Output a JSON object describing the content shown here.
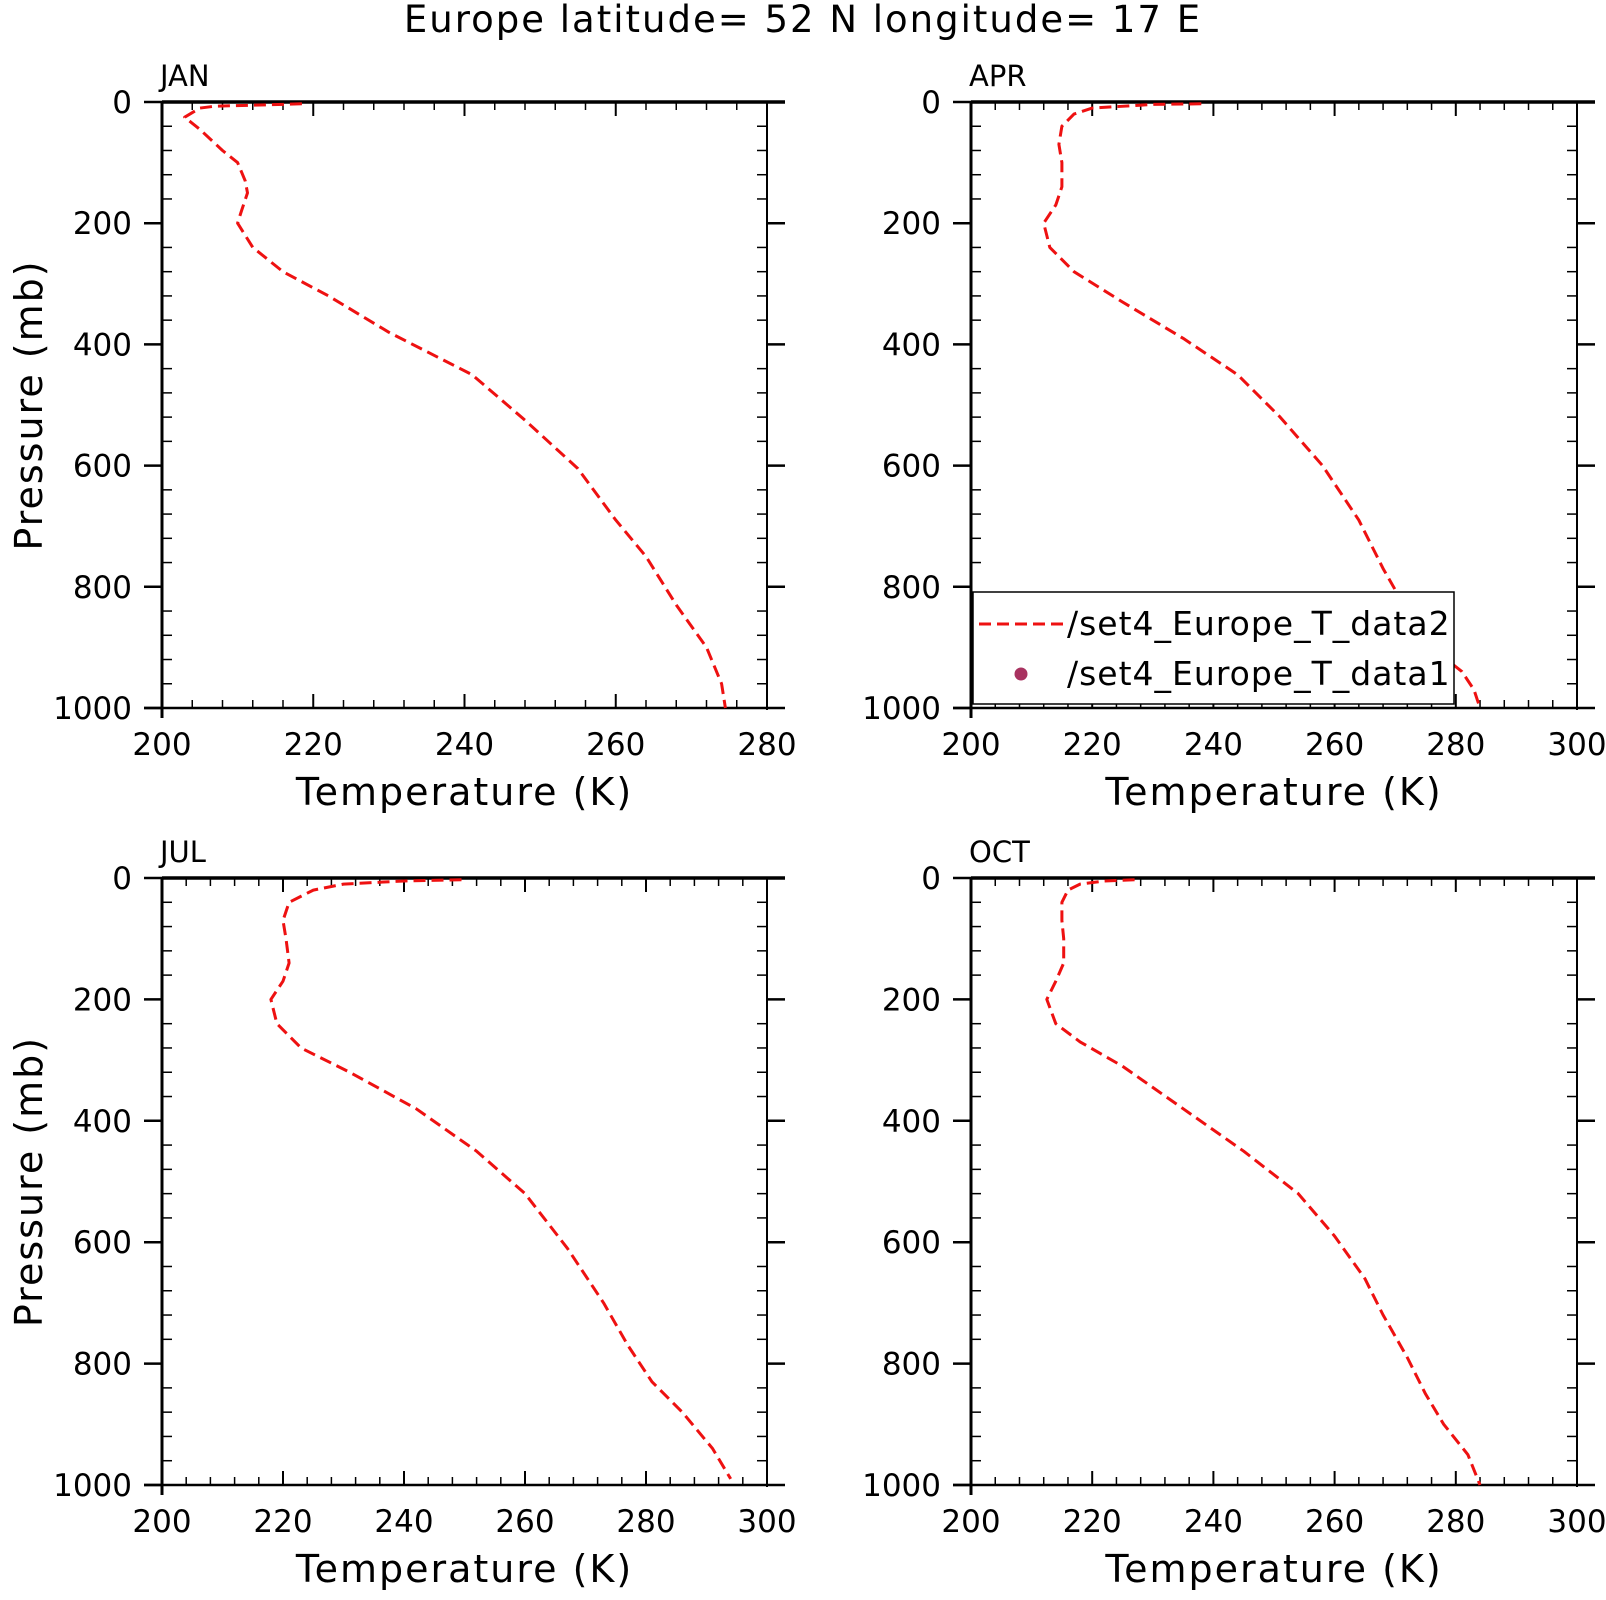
{
  "title": "Europe  latitude= 52 N longitude= 17 E",
  "colors": {
    "series": "#ee1111",
    "marker": "#a83260",
    "axis": "#000000"
  },
  "legend": {
    "panel": "APR",
    "placement": "bottom-right",
    "entries": [
      {
        "label": "/set4_Europe_T_data2",
        "style": "dashed-line",
        "color": "#ee1111"
      },
      {
        "label": "/set4_Europe_T_data1",
        "style": "dot",
        "color": "#a83260"
      }
    ]
  },
  "chart_data": [
    {
      "type": "line",
      "panel_label": "JAN",
      "xlabel": "Temperature (K)",
      "ylabel": "Pressure (mb)",
      "xlim": [
        200,
        280
      ],
      "ylim": [
        1000,
        0
      ],
      "y_inverted": true,
      "xticks": [
        "200",
        "220",
        "240",
        "260",
        "280"
      ],
      "yticks": [
        "0",
        "200",
        "400",
        "600",
        "800",
        "1000"
      ],
      "series": [
        {
          "name": "/set4_Europe_T_data2",
          "style": "dashed",
          "points": [
            [
              218.5,
              3
            ],
            [
              213,
              5
            ],
            [
              207,
              7
            ],
            [
              205,
              10
            ],
            [
              203,
              25
            ],
            [
              205,
              45
            ],
            [
              208,
              80
            ],
            [
              210,
              100
            ],
            [
              211,
              130
            ],
            [
              211.3,
              150
            ],
            [
              210.5,
              180
            ],
            [
              210,
              200
            ],
            [
              212,
              240
            ],
            [
              216,
              280
            ],
            [
              222,
              320
            ],
            [
              230,
              380
            ],
            [
              241,
              450
            ],
            [
              248,
              525
            ],
            [
              255,
              605
            ],
            [
              260,
              690
            ],
            [
              264,
              750
            ],
            [
              268,
              830
            ],
            [
              272,
              900
            ],
            [
              274,
              960
            ],
            [
              274.5,
              1000
            ]
          ]
        }
      ]
    },
    {
      "type": "line",
      "panel_label": "APR",
      "xlabel": "Temperature (K)",
      "ylabel": "",
      "xlim": [
        200,
        300
      ],
      "ylim": [
        1000,
        0
      ],
      "y_inverted": true,
      "xticks": [
        "200",
        "220",
        "240",
        "260",
        "280",
        "300"
      ],
      "yticks": [
        "0",
        "200",
        "400",
        "600",
        "800",
        "1000"
      ],
      "series": [
        {
          "name": "/set4_Europe_T_data2",
          "style": "dashed",
          "points": [
            [
              238,
              3
            ],
            [
              230,
              4
            ],
            [
              220,
              10
            ],
            [
              217,
              20
            ],
            [
              215,
              40
            ],
            [
              214.5,
              70
            ],
            [
              215,
              100
            ],
            [
              215,
              140
            ],
            [
              214,
              170
            ],
            [
              212,
              200
            ],
            [
              213,
              240
            ],
            [
              217,
              280
            ],
            [
              225,
              330
            ],
            [
              235,
              390
            ],
            [
              244,
              450
            ],
            [
              251,
              520
            ],
            [
              258,
              600
            ],
            [
              264,
              690
            ],
            [
              268,
              770
            ],
            [
              272,
              840
            ],
            [
              276,
              900
            ],
            [
              281,
              940
            ],
            [
              283,
              970
            ],
            [
              284,
              1000
            ]
          ]
        }
      ]
    },
    {
      "type": "line",
      "panel_label": "JUL",
      "xlabel": "Temperature (K)",
      "ylabel": "Pressure (mb)",
      "xlim": [
        200,
        300
      ],
      "ylim": [
        1000,
        0
      ],
      "y_inverted": true,
      "xticks": [
        "200",
        "220",
        "240",
        "260",
        "280",
        "300"
      ],
      "yticks": [
        "0",
        "200",
        "400",
        "600",
        "800",
        "1000"
      ],
      "series": [
        {
          "name": "/set4_Europe_T_data2",
          "style": "dashed",
          "points": [
            [
              249.5,
              3
            ],
            [
              240,
              5
            ],
            [
              230,
              10
            ],
            [
              225,
              20
            ],
            [
              221,
              40
            ],
            [
              220,
              70
            ],
            [
              220.5,
              100
            ],
            [
              221,
              140
            ],
            [
              220,
              170
            ],
            [
              218,
              200
            ],
            [
              219,
              240
            ],
            [
              223,
              280
            ],
            [
              231,
              320
            ],
            [
              242,
              380
            ],
            [
              252,
              450
            ],
            [
              260,
              520
            ],
            [
              267,
              610
            ],
            [
              273,
              700
            ],
            [
              277,
              770
            ],
            [
              281,
              830
            ],
            [
              286,
              880
            ],
            [
              291,
              940
            ],
            [
              294,
              990
            ]
          ]
        }
      ]
    },
    {
      "type": "line",
      "panel_label": "OCT",
      "xlabel": "Temperature (K)",
      "ylabel": "",
      "xlim": [
        200,
        300
      ],
      "ylim": [
        1000,
        0
      ],
      "y_inverted": true,
      "xticks": [
        "200",
        "220",
        "240",
        "260",
        "280",
        "300"
      ],
      "yticks": [
        "0",
        "200",
        "400",
        "600",
        "800",
        "1000"
      ],
      "series": [
        {
          "name": "/set4_Europe_T_data2",
          "style": "dashed",
          "points": [
            [
              227,
              3
            ],
            [
              222,
              5
            ],
            [
              218,
              10
            ],
            [
              216,
              20
            ],
            [
              215,
              40
            ],
            [
              215,
              70
            ],
            [
              215.3,
              100
            ],
            [
              215.3,
              140
            ],
            [
              214,
              170
            ],
            [
              212.5,
              200
            ],
            [
              214,
              240
            ],
            [
              218,
              270
            ],
            [
              225,
              310
            ],
            [
              235,
              380
            ],
            [
              245,
              450
            ],
            [
              254,
              520
            ],
            [
              260,
              590
            ],
            [
              265,
              660
            ],
            [
              268,
              720
            ],
            [
              272,
              790
            ],
            [
              275,
              850
            ],
            [
              278,
              900
            ],
            [
              282,
              950
            ],
            [
              284,
              1000
            ]
          ]
        }
      ]
    }
  ]
}
